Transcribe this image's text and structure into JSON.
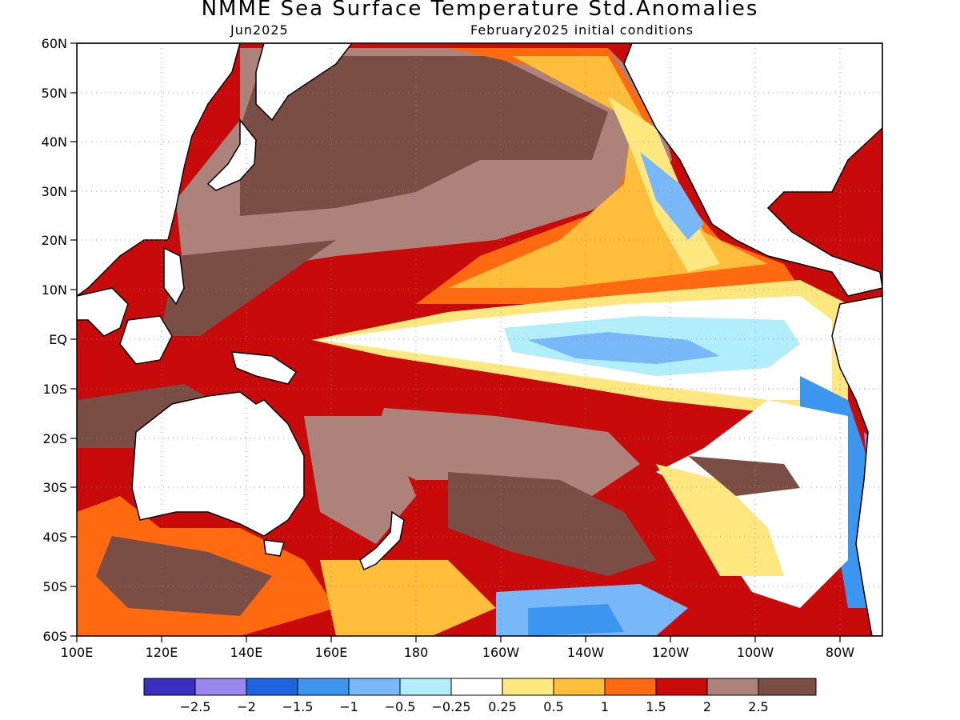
{
  "title": "NMME Sea Surface Temperature Std.Anomalies",
  "subtitle_left": "Jun2025",
  "subtitle_right": "February2025 initial conditions",
  "map": {
    "lon_range": [
      100,
      290
    ],
    "lat_range": [
      -60,
      60
    ],
    "lat_ticks": [
      "60N",
      "50N",
      "40N",
      "30N",
      "20N",
      "10N",
      "EQ",
      "10S",
      "20S",
      "30S",
      "40S",
      "50S",
      "60S"
    ],
    "lon_ticks": [
      "100E",
      "120E",
      "140E",
      "160E",
      "180",
      "160W",
      "140W",
      "120W",
      "100W",
      "80W"
    ]
  },
  "colorbar": {
    "colors": [
      "#3b2fbf",
      "#9b86f0",
      "#1e64e0",
      "#3c96f0",
      "#78b8f8",
      "#b2eefa",
      "#ffffff",
      "#ffe780",
      "#ffbd3c",
      "#ff6a10",
      "#c80a0a",
      "#ad827a",
      "#7a4e44"
    ],
    "labels": [
      "−2.5",
      "−2",
      "−1.5",
      "−1",
      "−0.5",
      "−0.25",
      "0.25",
      "0.5",
      "1",
      "1.5",
      "2",
      "2.5"
    ]
  }
}
